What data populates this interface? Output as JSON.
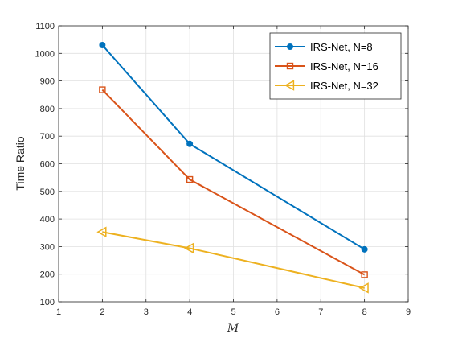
{
  "chart_data": {
    "type": "line",
    "title": "",
    "xlabel": "M",
    "ylabel": "Time Ratio",
    "xlim": [
      1,
      9
    ],
    "ylim": [
      100,
      1100
    ],
    "xticks": [
      1,
      2,
      3,
      4,
      5,
      6,
      7,
      8,
      9
    ],
    "yticks": [
      100,
      200,
      300,
      400,
      500,
      600,
      700,
      800,
      900,
      1000,
      1100
    ],
    "grid": true,
    "legend_position": "top-right",
    "series": [
      {
        "name": "IRS-Net, N=8",
        "x": [
          2,
          4,
          8
        ],
        "y": [
          1030,
          672,
          290
        ],
        "color": "#0072BD",
        "marker": "circle"
      },
      {
        "name": "IRS-Net, N=16",
        "x": [
          2,
          4,
          8
        ],
        "y": [
          868,
          543,
          198
        ],
        "color": "#D95319",
        "marker": "square"
      },
      {
        "name": "IRS-Net, N=32",
        "x": [
          2,
          4,
          8
        ],
        "y": [
          353,
          294,
          150
        ],
        "color": "#EDB120",
        "marker": "triangle-left"
      }
    ]
  }
}
